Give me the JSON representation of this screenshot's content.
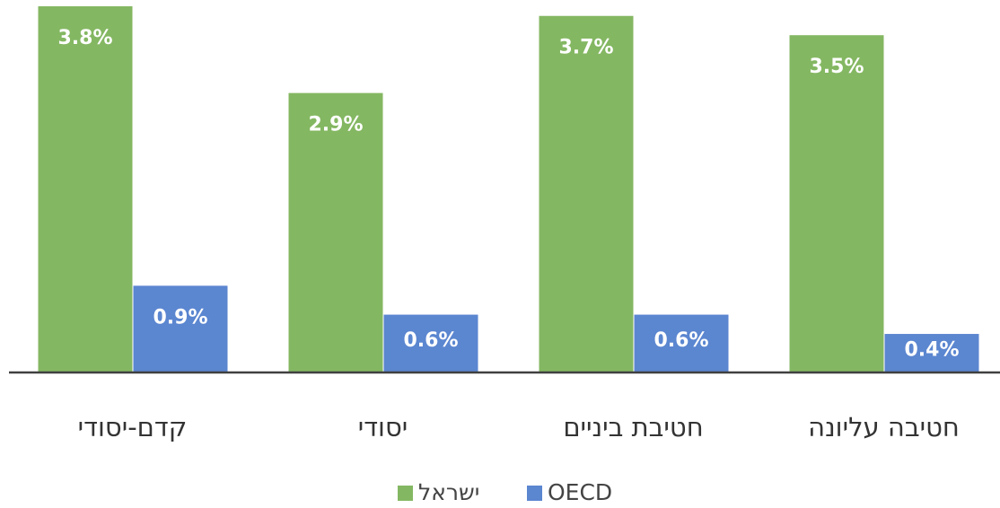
{
  "chart_data": {
    "type": "bar",
    "categories": [
      "קדם-יסודי",
      "יסודי",
      "חטיבת ביניים",
      "חטיבה עליונה"
    ],
    "series": [
      {
        "name": "ישראל",
        "color": "#84b762",
        "values": [
          3.8,
          2.9,
          3.7,
          3.5
        ],
        "value_labels": [
          "3.8%",
          "2.9%",
          "3.7%",
          "3.5%"
        ]
      },
      {
        "name": "OECD",
        "color": "#5b86d0",
        "values": [
          0.9,
          0.6,
          0.6,
          0.4
        ],
        "value_labels": [
          "0.9%",
          "0.6%",
          "0.6%",
          "0.4%"
        ]
      }
    ],
    "ylim": [
      0,
      3.8
    ]
  }
}
